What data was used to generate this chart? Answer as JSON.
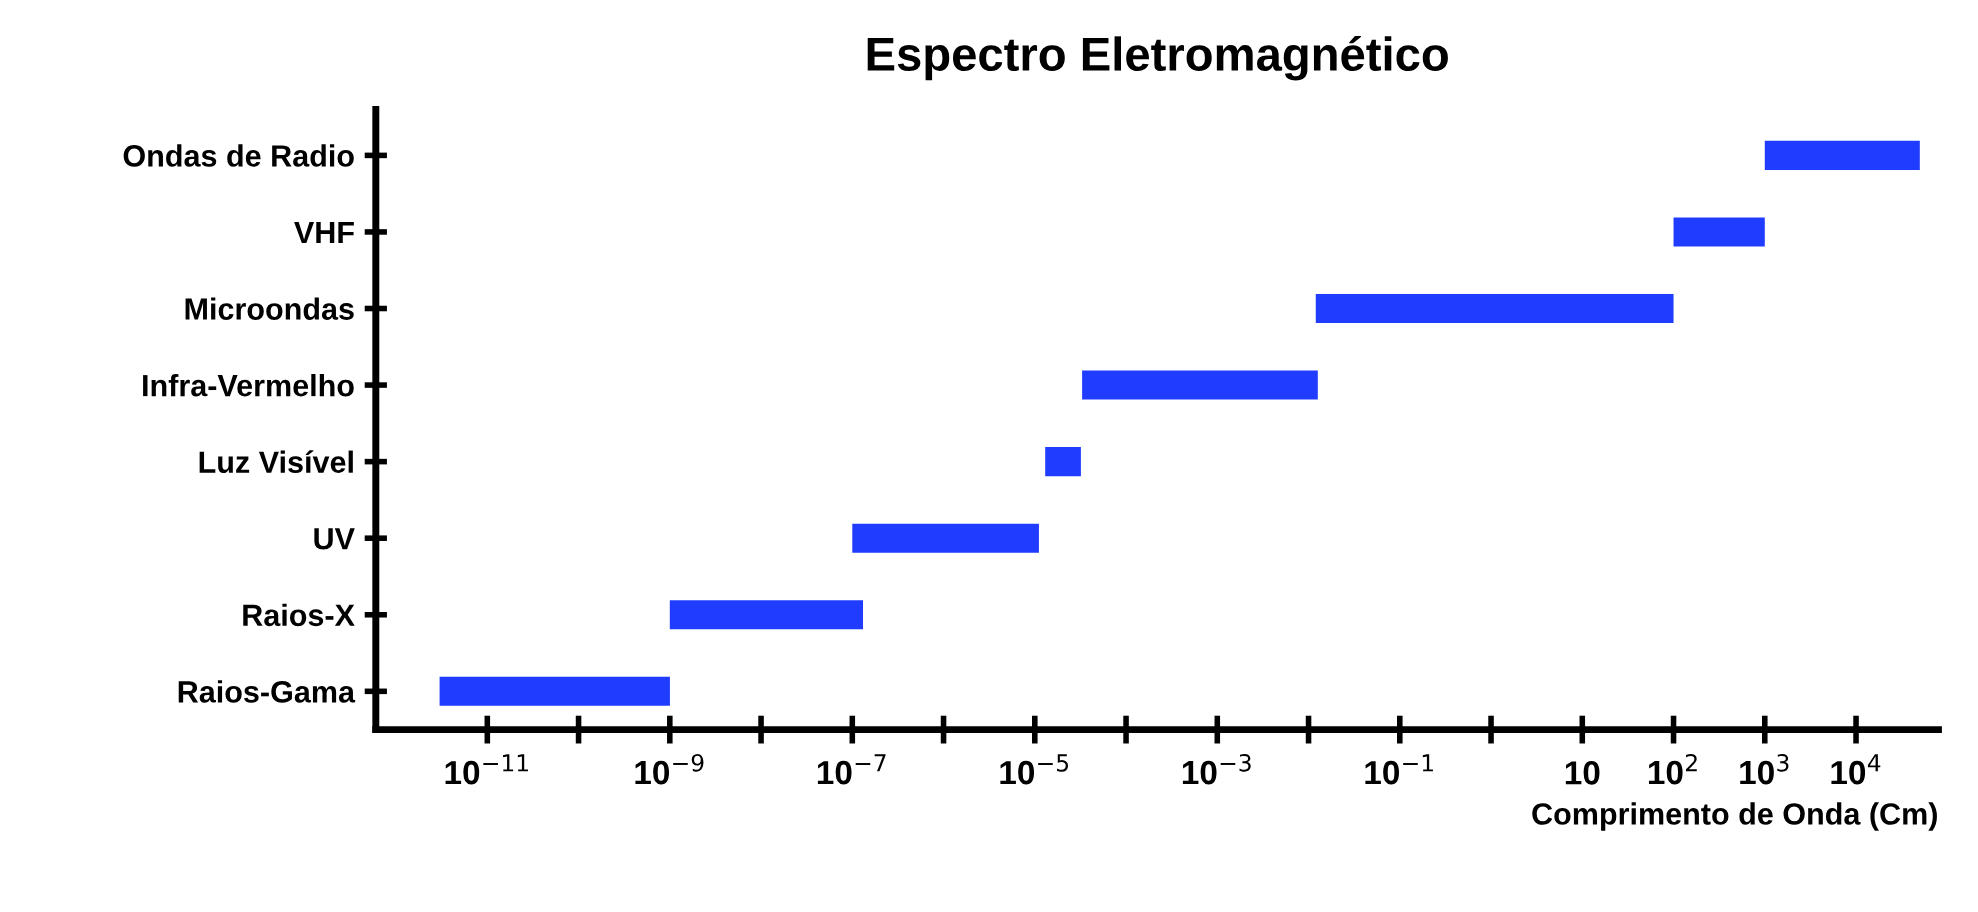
{
  "chart_data": {
    "type": "bar",
    "orientation": "horizontal",
    "title": "Espectro Eletromagnético",
    "xlabel": "Comprimento de Onda (Cm)",
    "categories": [
      "Ondas de Radio",
      "VHF",
      "Microondas",
      "Infra-Vermelho",
      "Luz Visível",
      "UV",
      "Raios-X",
      "Raios-Gama"
    ],
    "base": [
      1000,
      100,
      0.012,
      3.3e-05,
      1.3e-05,
      1e-07,
      1e-09,
      3e-12
    ],
    "values": [
      49000,
      900,
      100,
      0.0126,
      1.9e-05,
      1.1e-05,
      1.3e-07,
      1e-09
    ],
    "color": "#1f3cff",
    "log": "x",
    "grid": false,
    "xlim": [
      6e-13,
      80000
    ],
    "xticks": [
      {
        "value": 1e-11,
        "label": "10$^{−11}$"
      },
      {
        "value": 1e-10,
        "label": null
      },
      {
        "value": 1e-09,
        "label": "10$^{−9}$"
      },
      {
        "value": 1e-08,
        "label": null
      },
      {
        "value": 1e-07,
        "label": "10$^{−7}$"
      },
      {
        "value": 1e-06,
        "label": null
      },
      {
        "value": 1e-05,
        "label": "10$^{−5}$"
      },
      {
        "value": 0.0001,
        "label": null
      },
      {
        "value": 0.001,
        "label": "10$^{−3}$"
      },
      {
        "value": 0.01,
        "label": null
      },
      {
        "value": 0.1,
        "label": "10$^{−1}$"
      },
      {
        "value": 1,
        "label": null
      },
      {
        "value": 10,
        "label": "10"
      },
      {
        "value": 100,
        "label": "10$^{2}$"
      },
      {
        "value": 1000,
        "label": "10$^{3}$"
      },
      {
        "value": 10000,
        "label": "10$^{4}$"
      }
    ]
  }
}
